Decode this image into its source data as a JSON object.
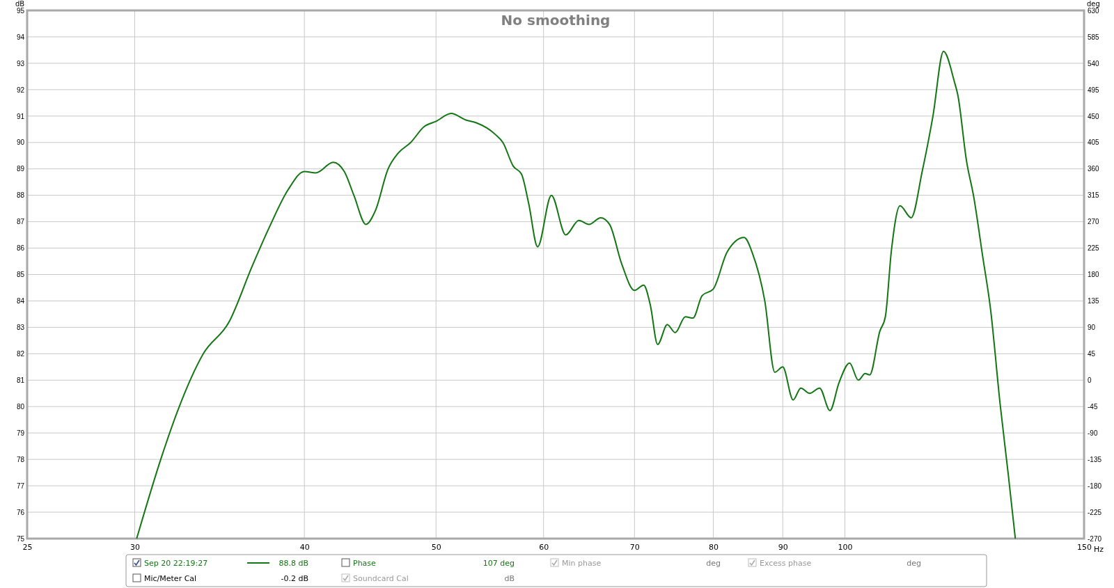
{
  "chart_data": {
    "type": "line",
    "title": "No smoothing",
    "xlabel": "Hz",
    "ylabel": "dB",
    "y2label": "deg",
    "log": "x",
    "xlim": [
      25,
      150
    ],
    "xticks": [
      25,
      30,
      40,
      50,
      60,
      70,
      80,
      90,
      100,
      150
    ],
    "ylim": [
      75,
      95
    ],
    "yticks": [
      75,
      76,
      77,
      78,
      79,
      80,
      81,
      82,
      83,
      84,
      85,
      86,
      87,
      88,
      89,
      90,
      91,
      92,
      93,
      94,
      95
    ],
    "y2lim": [
      -270,
      630
    ],
    "y2ticks": [
      -270,
      -225,
      -180,
      -135,
      -90,
      -45,
      0,
      45,
      90,
      135,
      180,
      225,
      270,
      315,
      360,
      405,
      450,
      495,
      540,
      585,
      630
    ],
    "grid": true,
    "legend": "bottom",
    "line_style": "solid",
    "marker": "none",
    "x": [
      30.1,
      31.4,
      32.3,
      33.7,
      35.2,
      36.6,
      37.7,
      38.9,
      40,
      40.8,
      42.0,
      42.8,
      43.5,
      44.4,
      45.1,
      46.1,
      46.9,
      47.9,
      49.0,
      50,
      51.3,
      52.6,
      53.5,
      55.3,
      56.0,
      57.0,
      57.8,
      58.5,
      59.4,
      60.8,
      62.3,
      63.7,
      64.8,
      66.1,
      67.1,
      68.5,
      70.0,
      71.1,
      71.9,
      72.8,
      74.0,
      75.0,
      76.3,
      77.3,
      78.5,
      80,
      81.9,
      84.3,
      85.5,
      87.3,
      88.8,
      90,
      91.6,
      92.8,
      94.2,
      95.8,
      97.5,
      99.0,
      100.8,
      102.3,
      103.5,
      104.3,
      106.1,
      107.1,
      108.2,
      109.8,
      111.9,
      114.0,
      116.1,
      118.2,
      120.4,
      121.1,
      122.9,
      124.4,
      126.3,
      128.0,
      130.1,
      131.9,
      133.5
    ],
    "series": [
      {
        "name": "Sep 20 22:19:27",
        "color": "#127612",
        "values": [
          75.0,
          78.1,
          79.9,
          82.0,
          83.2,
          85.3,
          86.8,
          88.2,
          88.9,
          88.85,
          89.25,
          88.9,
          88.0,
          86.9,
          87.4,
          89.0,
          89.6,
          90.0,
          90.6,
          90.8,
          91.1,
          90.85,
          90.75,
          90.3,
          90.0,
          89.1,
          88.8,
          87.7,
          86.05,
          88.0,
          86.5,
          87.05,
          86.9,
          87.15,
          86.9,
          85.4,
          84.4,
          84.6,
          83.85,
          82.35,
          83.1,
          82.8,
          83.4,
          83.35,
          84.2,
          84.45,
          85.85,
          86.4,
          85.8,
          84.0,
          81.3,
          81.5,
          80.25,
          80.7,
          80.5,
          80.7,
          79.85,
          80.9,
          81.65,
          81.0,
          81.25,
          81.2,
          82.85,
          83.4,
          85.9,
          87.6,
          87.15,
          88.9,
          91.0,
          93.45,
          92.3,
          91.8,
          89.3,
          87.95,
          85.7,
          83.7,
          80.1,
          77.45,
          75.0
        ]
      }
    ],
    "annotations": [
      "88.8 dB",
      "Phase",
      "107 deg",
      "Min phase",
      "deg",
      "Excess phase",
      "deg",
      "Mic/Meter Cal",
      "-0.2 dB",
      "Soundcard Cal",
      "dB"
    ]
  }
}
